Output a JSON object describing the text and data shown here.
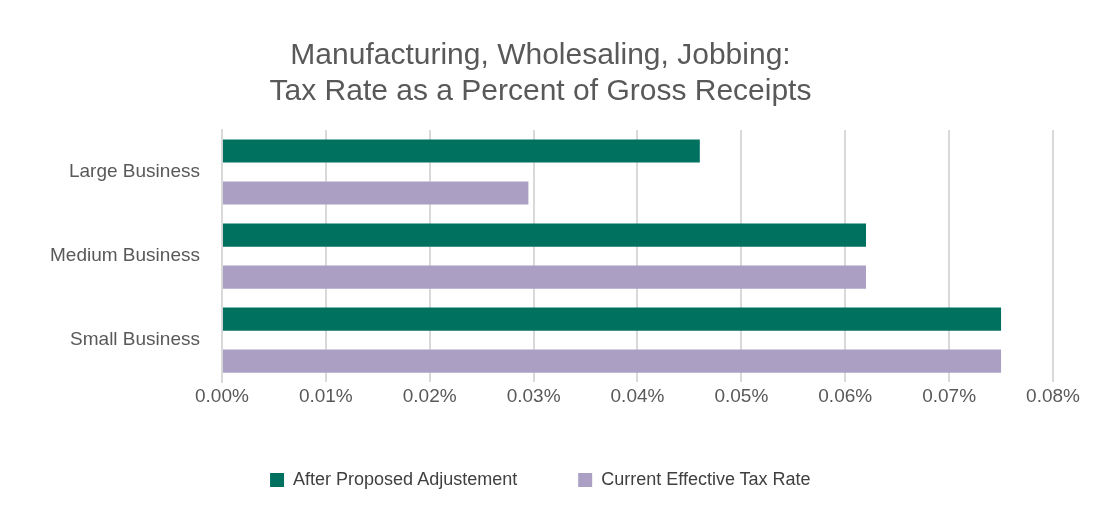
{
  "chart_data": {
    "type": "bar",
    "orientation": "horizontal",
    "title": [
      "Manufacturing, Wholesaling, Jobbing:",
      "Tax Rate as a Percent of Gross Receipts"
    ],
    "categories": [
      "Large Business",
      "Medium Business",
      "Small Business"
    ],
    "series": [
      {
        "name": "After Proposed Adjustement",
        "color": "#00705f",
        "values": [
          0.046,
          0.062,
          0.075
        ]
      },
      {
        "name": "Current Effective Tax Rate",
        "color": "#ab9fc4",
        "values": [
          0.0295,
          0.062,
          0.075
        ]
      }
    ],
    "xlim": [
      0,
      0.08
    ],
    "xticks": [
      {
        "value": 0,
        "label": "0.00%"
      },
      {
        "value": 0.01,
        "label": "0.01%"
      },
      {
        "value": 0.02,
        "label": "0.02%"
      },
      {
        "value": 0.03,
        "label": "0.03%"
      },
      {
        "value": 0.04,
        "label": "0.04%"
      },
      {
        "value": 0.05,
        "label": "0.05%"
      },
      {
        "value": 0.06,
        "label": "0.06%"
      },
      {
        "value": 0.07,
        "label": "0.07%"
      },
      {
        "value": 0.08,
        "label": "0.08%"
      }
    ],
    "grid": "x",
    "legend": "bottom"
  }
}
